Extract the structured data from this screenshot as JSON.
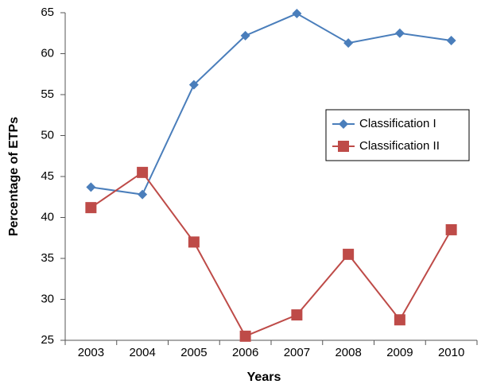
{
  "chart_data": {
    "type": "line",
    "x_label": "Years",
    "y_label": "Percentage of ETPs",
    "categories": [
      "2003",
      "2004",
      "2005",
      "2006",
      "2007",
      "2008",
      "2009",
      "2010"
    ],
    "series": [
      {
        "name": "Classification I",
        "color": "#4a7ebb",
        "marker": "diamond",
        "values": [
          43.7,
          42.8,
          56.2,
          62.2,
          64.9,
          61.3,
          62.5,
          61.6
        ]
      },
      {
        "name": "Classification II",
        "color": "#be4b48",
        "marker": "square",
        "values": [
          41.2,
          45.5,
          37.0,
          25.5,
          28.1,
          35.5,
          27.5,
          38.5
        ]
      }
    ],
    "ylim": [
      25,
      65
    ],
    "yticks": [
      25,
      30,
      35,
      40,
      45,
      50,
      55,
      60,
      65
    ],
    "grid": false,
    "legend_position": "right"
  }
}
